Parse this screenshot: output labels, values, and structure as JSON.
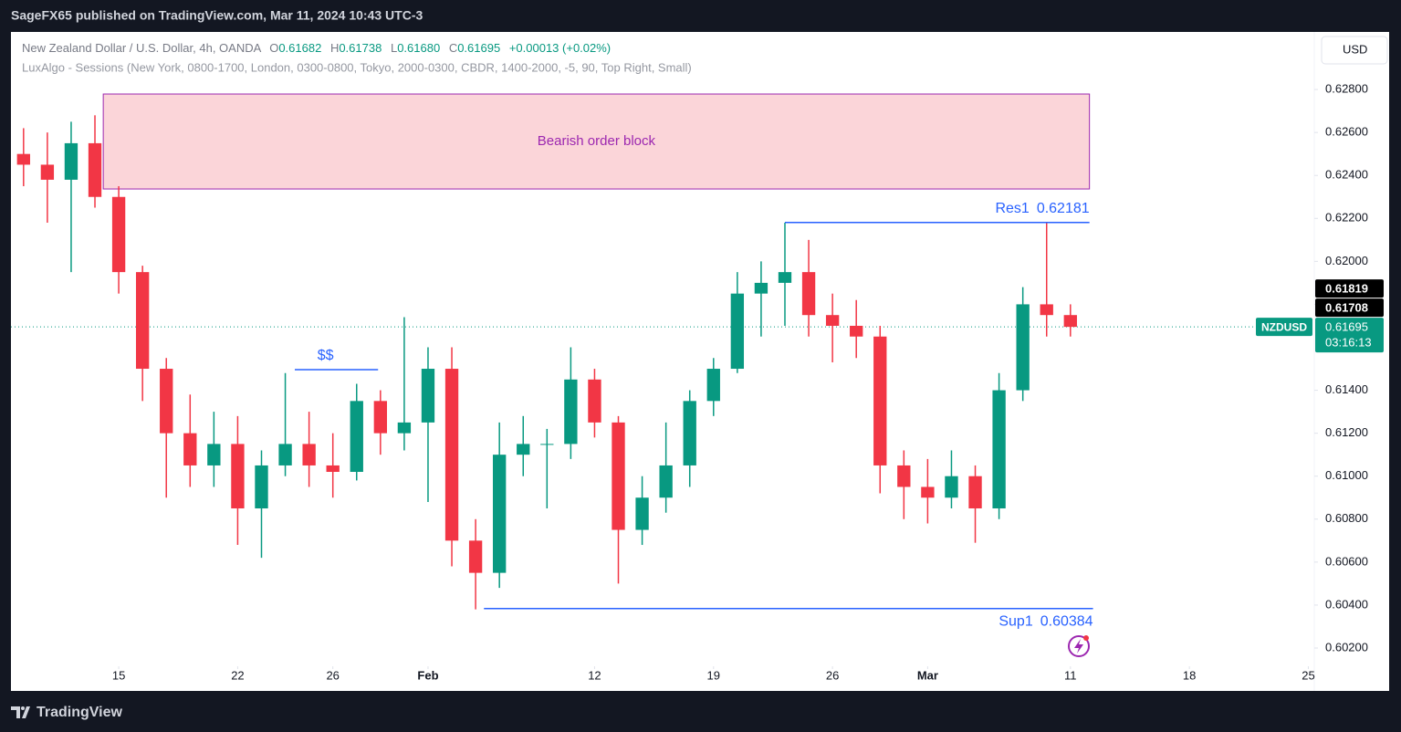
{
  "chart_data": {
    "type": "candlestick",
    "header": "SageFX65 published on TradingView.com, Mar 11, 2024 10:43 UTC-3",
    "legend": {
      "title": "New Zealand Dollar / U.S. Dollar, 4h, OANDA",
      "letters": [
        "O",
        "H",
        "L",
        "C"
      ],
      "values": [
        0.61682,
        0.61738,
        0.6168,
        0.61695
      ],
      "value_labels": [
        "0.61682",
        "0.61738",
        "0.61680",
        "0.61695"
      ],
      "change": "+0.00013 (+0.02%)",
      "indicator": "LuxAlgo - Sessions (New York, 0800-1700, London, 0300-0800, Tokyo, 2000-0300, CBDR, 1400-2000, -5, 90, Top Right, Small)"
    },
    "currency_button": "USD",
    "up_color": "#089981",
    "down_color": "#f23645",
    "x": [
      -4,
      -3,
      -2,
      -1,
      0,
      1,
      2,
      3,
      4,
      5,
      6,
      7,
      8,
      9,
      10,
      11,
      12,
      13,
      14,
      15,
      16,
      17,
      18,
      19,
      20,
      21,
      22,
      23,
      24,
      25,
      26,
      27,
      28,
      29,
      30,
      31,
      32,
      33,
      34,
      35,
      36,
      37,
      38,
      39,
      40
    ],
    "open": [
      0.625,
      0.6245,
      0.6238,
      0.6255,
      0.623,
      0.6195,
      0.615,
      0.612,
      0.6105,
      0.6115,
      0.6085,
      0.6105,
      0.6115,
      0.6105,
      0.6102,
      0.6135,
      0.612,
      0.6125,
      0.615,
      0.607,
      0.6055,
      0.611,
      0.6115,
      0.6115,
      0.6145,
      0.6125,
      0.6075,
      0.609,
      0.6105,
      0.6135,
      0.615,
      0.6185,
      0.619,
      0.6195,
      0.6175,
      0.617,
      0.6165,
      0.6105,
      0.6095,
      0.609,
      0.61,
      0.6085,
      0.614,
      0.618,
      0.6175
    ],
    "high": [
      0.6262,
      0.626,
      0.6265,
      0.6268,
      0.6235,
      0.6198,
      0.6155,
      0.6138,
      0.613,
      0.6128,
      0.6112,
      0.6148,
      0.613,
      0.612,
      0.6143,
      0.614,
      0.6174,
      0.616,
      0.616,
      0.608,
      0.6125,
      0.6128,
      0.6122,
      0.616,
      0.615,
      0.6128,
      0.61,
      0.6125,
      0.614,
      0.6155,
      0.6195,
      0.62,
      0.6218,
      0.621,
      0.6185,
      0.6182,
      0.617,
      0.6112,
      0.6108,
      0.6112,
      0.6105,
      0.6148,
      0.6188,
      0.6218,
      0.618
    ],
    "low": [
      0.6235,
      0.6218,
      0.6195,
      0.6225,
      0.6185,
      0.6135,
      0.609,
      0.6095,
      0.6095,
      0.6068,
      0.6062,
      0.61,
      0.6095,
      0.609,
      0.6098,
      0.611,
      0.6112,
      0.6088,
      0.6058,
      0.6038,
      0.6048,
      0.61,
      0.6085,
      0.6108,
      0.6118,
      0.605,
      0.6068,
      0.6083,
      0.6095,
      0.6128,
      0.6148,
      0.6165,
      0.617,
      0.6165,
      0.6153,
      0.6155,
      0.6092,
      0.608,
      0.6078,
      0.6085,
      0.6069,
      0.608,
      0.6135,
      0.6165,
      0.6165
    ],
    "close": [
      0.6245,
      0.6238,
      0.6255,
      0.623,
      0.6195,
      0.615,
      0.612,
      0.6105,
      0.6115,
      0.6085,
      0.6105,
      0.6115,
      0.6105,
      0.6102,
      0.6135,
      0.612,
      0.6125,
      0.615,
      0.607,
      0.6055,
      0.611,
      0.6115,
      0.6115,
      0.6145,
      0.6125,
      0.6075,
      0.609,
      0.6105,
      0.6135,
      0.615,
      0.6185,
      0.619,
      0.6195,
      0.6175,
      0.617,
      0.6165,
      0.6105,
      0.6095,
      0.609,
      0.61,
      0.6085,
      0.614,
      0.618,
      0.6175,
      0.61695
    ],
    "xlim": [
      -4.53,
      50.25
    ],
    "xticks": [
      {
        "value": 0,
        "label": "15"
      },
      {
        "value": 5,
        "label": "22"
      },
      {
        "value": 9,
        "label": "26"
      },
      {
        "value": 13,
        "label": "Feb"
      },
      {
        "value": 20,
        "label": "12"
      },
      {
        "value": 25,
        "label": "19"
      },
      {
        "value": 30,
        "label": "26"
      },
      {
        "value": 34,
        "label": "Mar"
      },
      {
        "value": 40,
        "label": "11"
      },
      {
        "value": 45,
        "label": "18"
      },
      {
        "value": 50,
        "label": "25"
      }
    ],
    "ylim": [
      0.60115,
      0.63068
    ],
    "yticks": [
      {
        "value": 0.628,
        "label": "0.62800"
      },
      {
        "value": 0.626,
        "label": "0.62600"
      },
      {
        "value": 0.624,
        "label": "0.62400"
      },
      {
        "value": 0.622,
        "label": "0.62200"
      },
      {
        "value": 0.62,
        "label": "0.62000"
      },
      {
        "value": 0.618,
        "label": "0.61800"
      },
      {
        "value": 0.614,
        "label": "0.61400"
      },
      {
        "value": 0.612,
        "label": "0.61200"
      },
      {
        "value": 0.61,
        "label": "0.61000"
      },
      {
        "value": 0.608,
        "label": "0.60800"
      },
      {
        "value": 0.606,
        "label": "0.60600"
      },
      {
        "value": 0.604,
        "label": "0.60400"
      },
      {
        "value": 0.602,
        "label": "0.60200"
      }
    ],
    "grid": false,
    "zone": {
      "label": "Bearish order block",
      "x": [
        -0.65,
        40.8
      ],
      "y": [
        0.62337,
        0.62779
      ],
      "fill": "#fbd5d9",
      "stroke": "#9c27b0",
      "text_color": "#9c27b0"
    },
    "levels": [
      {
        "label": "Res1",
        "value": 0.62181,
        "x": [
          28,
          40.8
        ],
        "color": "#2962ff"
      },
      {
        "label": "Sup1",
        "value": 0.60384,
        "x": [
          15.35,
          40.95
        ],
        "color": "#2962ff"
      }
    ],
    "liquidity": {
      "label": "$$",
      "value": 0.61496,
      "x": [
        7.4,
        10.9
      ],
      "color": "#2962ff"
    },
    "last_price": {
      "symbol": "NZDUSD",
      "value": 0.61695,
      "label": "0.61695",
      "countdown": "03:16:13",
      "color": "#089981"
    },
    "price_labels": [
      {
        "value": 0.61819,
        "label": "0.61819"
      },
      {
        "value": 0.61708,
        "label": "0.61708"
      }
    ],
    "brand": "TradingView"
  }
}
